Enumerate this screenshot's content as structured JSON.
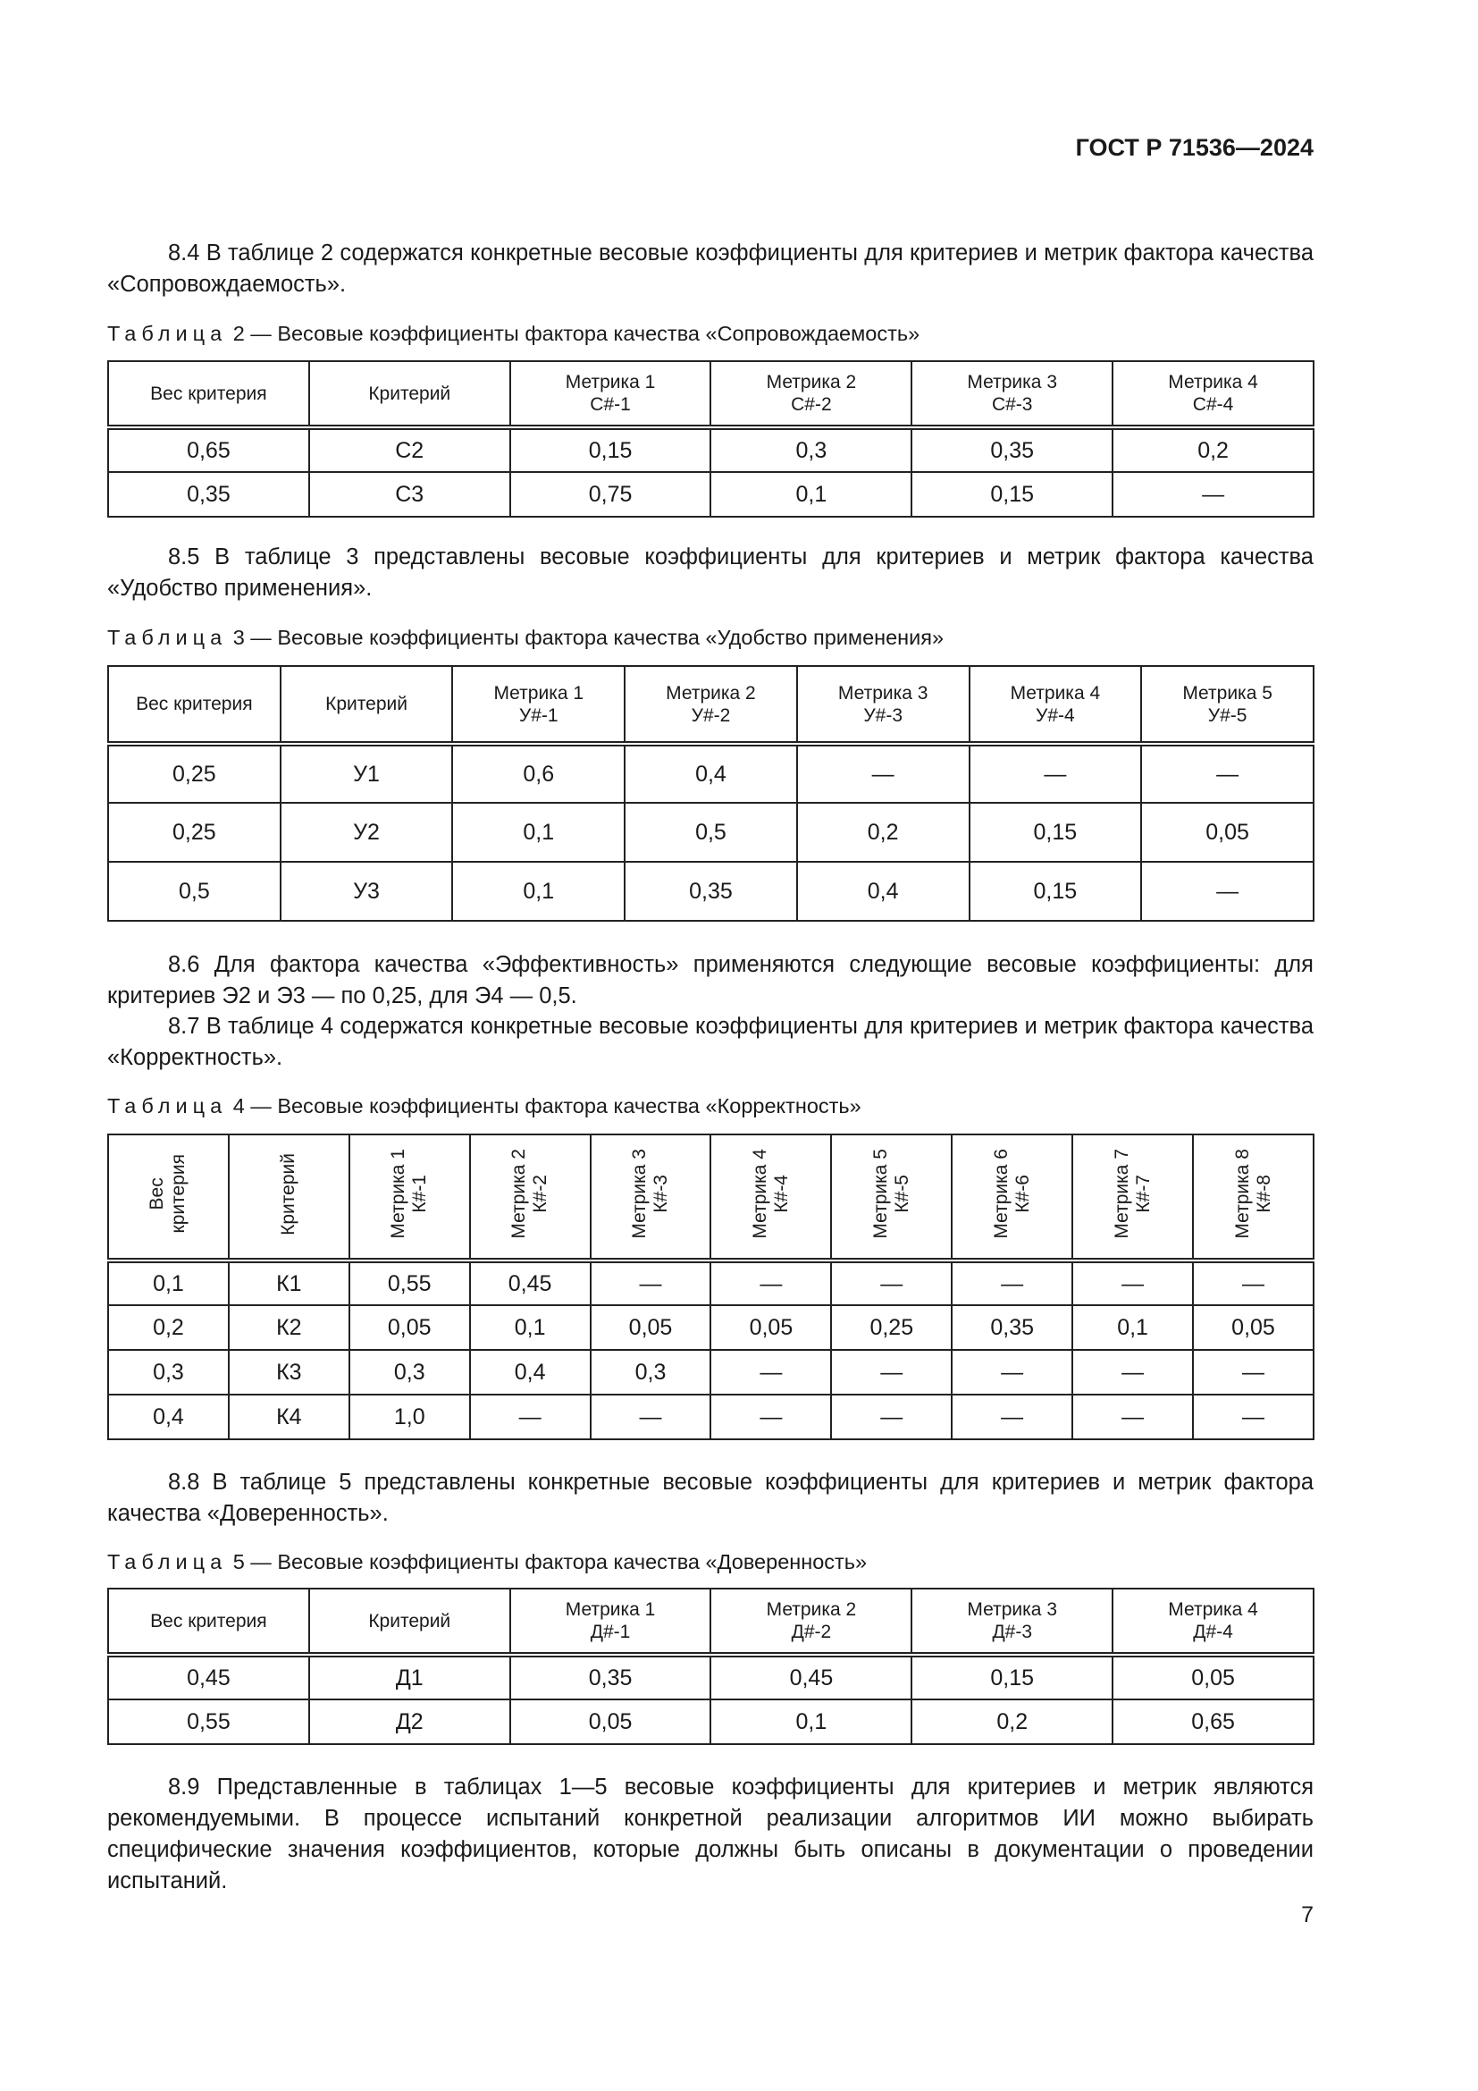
{
  "header": "ГОСТ Р 71536—2024",
  "paragraphs": {
    "p84": "8.4 В таблице 2 содержатся конкретные весовые коэффициенты для критериев и метрик фактора качества «Сопровождаемость».",
    "p85": "8.5 В таблице 3 представлены весовые коэффициенты для критериев и метрик фактора качества «Удобство применения».",
    "p86": "8.6 Для фактора качества «Эффективность» применяются следующие весовые коэффициенты: для критериев Э2 и Э3 — по 0,25, для Э4 — 0,5.",
    "p87": "8.7 В таблице 4 содержатся конкретные весовые коэффициенты для критериев и метрик фактора качества «Корректность».",
    "p88": "8.8 В таблице 5 представлены конкретные весовые коэффициенты для критериев и метрик фактора качества «Доверенность».",
    "p89": "8.9 Представленные в таблицах 1—5 весовые коэффициенты для критериев и метрик являются рекомендуемыми. В процессе испытаний конкретной реализации алгоритмов ИИ можно выбирать специфические значения коэффициентов, которые должны быть описаны в документации о проведении испытаний."
  },
  "tables": [
    {
      "label": "Таблица",
      "caption": "2 — Весовые коэффициенты фактора качества «Сопровождаемость»",
      "headers": [
        [
          "Вес критерия"
        ],
        [
          "Критерий"
        ],
        [
          "Метрика 1",
          "С#-1"
        ],
        [
          "Метрика 2",
          "С#-2"
        ],
        [
          "Метрика 3",
          "С#-3"
        ],
        [
          "Метрика 4",
          "С#-4"
        ]
      ],
      "rows": [
        [
          "0,65",
          "С2",
          "0,15",
          "0,3",
          "0,35",
          "0,2"
        ],
        [
          "0,35",
          "С3",
          "0,75",
          "0,1",
          "0,15",
          "—"
        ]
      ]
    },
    {
      "label": "Таблица",
      "caption": "3 — Весовые коэффициенты фактора качества «Удобство применения»",
      "headers": [
        [
          "Вес критерия"
        ],
        [
          "Критерий"
        ],
        [
          "Метрика 1",
          "У#-1"
        ],
        [
          "Метрика 2",
          "У#-2"
        ],
        [
          "Метрика 3",
          "У#-3"
        ],
        [
          "Метрика 4",
          "У#-4"
        ],
        [
          "Метрика 5",
          "У#-5"
        ]
      ],
      "rows": [
        [
          "0,25",
          "У1",
          "0,6",
          "0,4",
          "—",
          "—",
          "—"
        ],
        [
          "0,25",
          "У2",
          "0,1",
          "0,5",
          "0,2",
          "0,15",
          "0,05"
        ],
        [
          "0,5",
          "У3",
          "0,1",
          "0,35",
          "0,4",
          "0,15",
          "—"
        ]
      ]
    },
    {
      "label": "Таблица",
      "caption": "4 — Весовые коэффициенты фактора качества «Корректность»",
      "headers": [
        [
          "Вес",
          "критерия"
        ],
        [
          "Критерий"
        ],
        [
          "Метрика 1",
          "К#-1"
        ],
        [
          "Метрика 2",
          "К#-2"
        ],
        [
          "Метрика 3",
          "К#-3"
        ],
        [
          "Метрика 4",
          "К#-4"
        ],
        [
          "Метрика 5",
          "К#-5"
        ],
        [
          "Метрика 6",
          "К#-6"
        ],
        [
          "Метрика 7",
          "К#-7"
        ],
        [
          "Метрика 8",
          "К#-8"
        ]
      ],
      "rows": [
        [
          "0,1",
          "К1",
          "0,55",
          "0,45",
          "—",
          "—",
          "—",
          "—",
          "—",
          "—"
        ],
        [
          "0,2",
          "К2",
          "0,05",
          "0,1",
          "0,05",
          "0,05",
          "0,25",
          "0,35",
          "0,1",
          "0,05"
        ],
        [
          "0,3",
          "К3",
          "0,3",
          "0,4",
          "0,3",
          "—",
          "—",
          "—",
          "—",
          "—"
        ],
        [
          "0,4",
          "К4",
          "1,0",
          "—",
          "—",
          "—",
          "—",
          "—",
          "—",
          "—"
        ]
      ]
    },
    {
      "label": "Таблица",
      "caption": "5 — Весовые коэффициенты фактора качества «Доверенность»",
      "headers": [
        [
          "Вес критерия"
        ],
        [
          "Критерий"
        ],
        [
          "Метрика 1",
          "Д#-1"
        ],
        [
          "Метрика 2",
          "Д#-2"
        ],
        [
          "Метрика 3",
          "Д#-3"
        ],
        [
          "Метрика 4",
          "Д#-4"
        ]
      ],
      "rows": [
        [
          "0,45",
          "Д1",
          "0,35",
          "0,45",
          "0,15",
          "0,05"
        ],
        [
          "0,55",
          "Д2",
          "0,05",
          "0,1",
          "0,2",
          "0,65"
        ]
      ]
    }
  ],
  "page_number": "7"
}
